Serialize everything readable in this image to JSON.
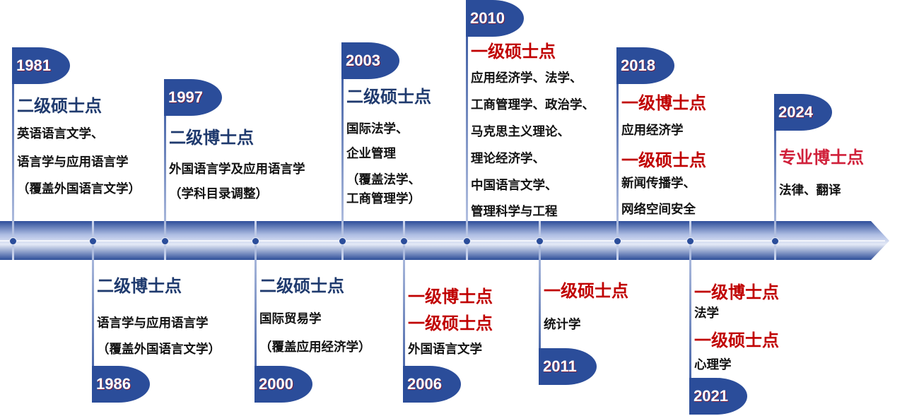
{
  "colors": {
    "flag": "#2b4d9a",
    "second_level": "#1f3a6e",
    "first_level": "#c00000",
    "professional": "#d0203a",
    "axis": "#2b4d9a"
  },
  "events": [
    {
      "year": "1981",
      "side": "top",
      "blocks": [
        {
          "heading": "二级硕士点",
          "level": "second_level",
          "lines": [
            "英语语言文学、",
            "语言学与应用语言学",
            "（覆盖外国语言文学）"
          ]
        }
      ]
    },
    {
      "year": "1986",
      "side": "bottom",
      "blocks": [
        {
          "heading": "二级博士点",
          "level": "second_level",
          "lines": [
            "语言学与应用语言学",
            "（覆盖外国语言文学）"
          ]
        }
      ]
    },
    {
      "year": "1997",
      "side": "top",
      "blocks": [
        {
          "heading": "二级博士点",
          "level": "second_level",
          "lines": [
            "外国语言学及应用语言学",
            "（学科目录调整）"
          ]
        }
      ]
    },
    {
      "year": "2000",
      "side": "bottom",
      "blocks": [
        {
          "heading": "二级硕士点",
          "level": "second_level",
          "lines": [
            "国际贸易学",
            "（覆盖应用经济学）"
          ]
        }
      ]
    },
    {
      "year": "2003",
      "side": "top",
      "blocks": [
        {
          "heading": "二级硕士点",
          "level": "second_level",
          "lines": [
            "国际法学、",
            "企业管理",
            "（覆盖法学、",
            "工商管理学）"
          ]
        }
      ]
    },
    {
      "year": "2006",
      "side": "bottom",
      "blocks": [
        {
          "heading": "一级博士点",
          "level": "first_level",
          "lines": []
        },
        {
          "heading": "一级硕士点",
          "level": "first_level",
          "lines": [
            "外国语言文学"
          ]
        }
      ]
    },
    {
      "year": "2010",
      "side": "top",
      "blocks": [
        {
          "heading": "一级硕士点",
          "level": "first_level",
          "lines": [
            "应用经济学、法学、",
            "工商管理学、政治学、",
            "马克思主义理论、",
            "理论经济学、",
            "中国语言文学、",
            "管理科学与工程"
          ]
        }
      ]
    },
    {
      "year": "2011",
      "side": "bottom",
      "blocks": [
        {
          "heading": "一级硕士点",
          "level": "first_level",
          "lines": [
            "统计学"
          ]
        }
      ]
    },
    {
      "year": "2018",
      "side": "top",
      "blocks": [
        {
          "heading": "一级博士点",
          "level": "first_level",
          "lines": [
            "应用经济学"
          ]
        },
        {
          "heading": "一级硕士点",
          "level": "first_level",
          "lines": [
            "新闻传播学、",
            "网络空间安全"
          ]
        }
      ]
    },
    {
      "year": "2021",
      "side": "bottom",
      "blocks": [
        {
          "heading": "一级博士点",
          "level": "first_level",
          "lines": [
            "法学"
          ]
        },
        {
          "heading": "一级硕士点",
          "level": "first_level",
          "lines": [
            "心理学"
          ]
        }
      ]
    },
    {
      "year": "2024",
      "side": "top",
      "blocks": [
        {
          "heading": "专业博士点",
          "level": "professional",
          "lines": [
            "法律、翻译"
          ]
        }
      ]
    }
  ]
}
